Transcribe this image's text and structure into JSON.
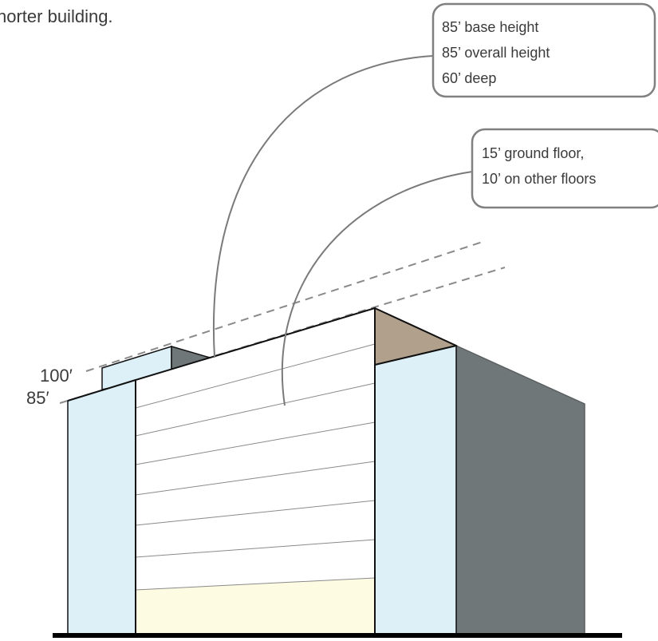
{
  "caption_fragment": "horter building.",
  "height_labels": {
    "upper": "100′",
    "lower": "85′"
  },
  "callouts": {
    "dimensions": {
      "line1": "85’ base height",
      "line2": "85’ overall height",
      "line3": "60’ deep"
    },
    "floors": {
      "line1": "15’ ground floor,",
      "line2": "10’ on other floors"
    }
  },
  "colors": {
    "side_face": "#ddf0f8",
    "dark_face": "#707779",
    "roof": "#b0a08c",
    "ground_floor": "#fdfbe2",
    "outline": "#111111"
  }
}
